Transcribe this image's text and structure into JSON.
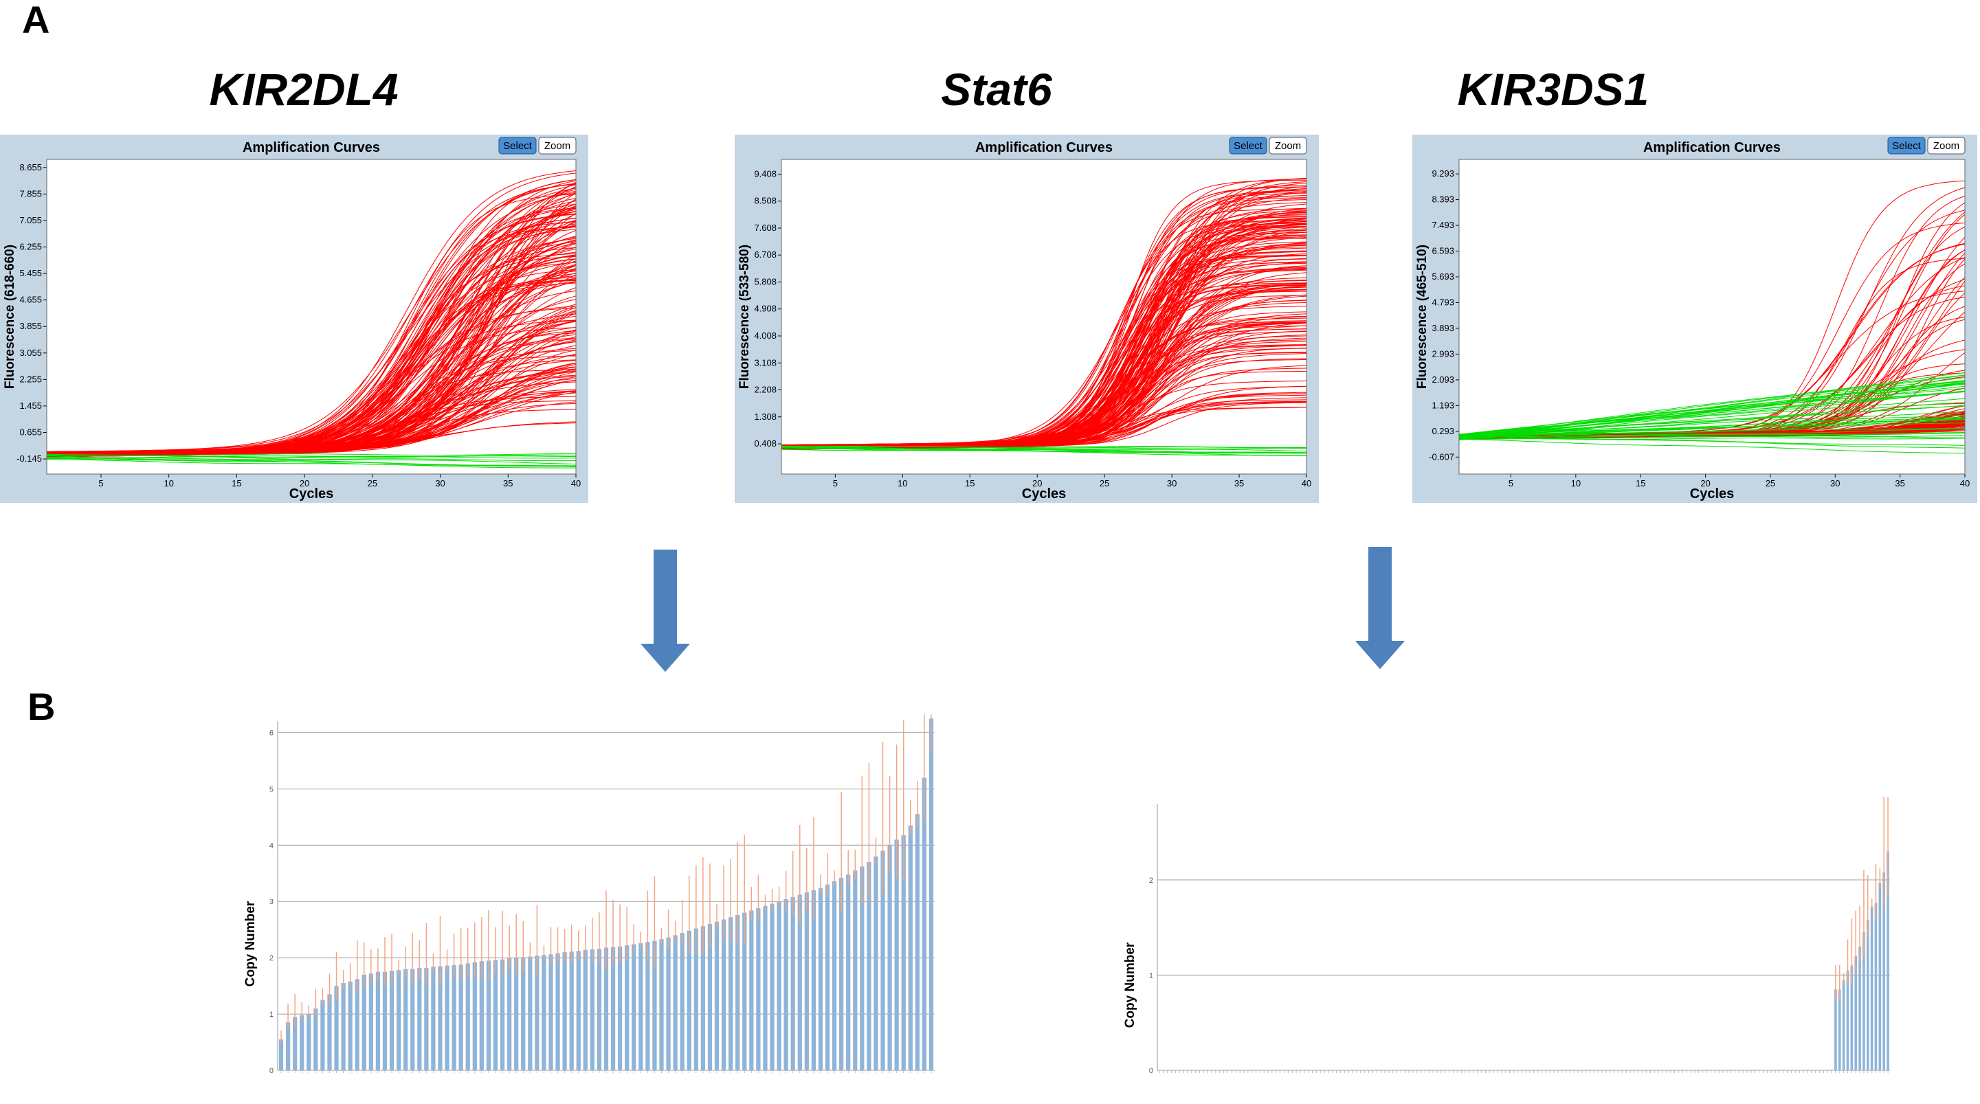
{
  "labels": {
    "panel_a": "A",
    "panel_b": "B"
  },
  "colors": {
    "red": "#ff0000",
    "green": "#00dd00",
    "frame": "#c4d5e4",
    "bar": "#8fb4d9",
    "err": "#f4a582",
    "arrow": "#4f81bd"
  },
  "chart_data": [
    {
      "type": "line",
      "gene": "KIR2DL4",
      "title": "Amplification Curves",
      "xlabel": "Cycles",
      "ylabel": "Fluorescence (618-660)",
      "buttons": {
        "select": "Select",
        "zoom": "Zoom"
      },
      "xlim": [
        1,
        40
      ],
      "ylim": [
        -0.6,
        8.9
      ],
      "x_ticks": [
        5,
        10,
        15,
        20,
        25,
        30,
        35,
        40
      ],
      "y_ticks": [
        "-0.145",
        "0.655",
        "1.455",
        "2.255",
        "3.055",
        "3.855",
        "4.655",
        "5.455",
        "6.255",
        "7.055",
        "7.855",
        "8.655"
      ],
      "series": [
        {
          "color": "red",
          "count": 180,
          "baseline": 0.0,
          "plateau_range": [
            0.7,
            8.5
          ],
          "midpoint_range": [
            27,
            34
          ],
          "slope_range": [
            2.2,
            3.2
          ]
        },
        {
          "color": "green",
          "count": 10,
          "baseline": -0.1,
          "plateau_range": [
            0,
            0
          ],
          "drift_range": [
            -0.3,
            0.05
          ]
        }
      ]
    },
    {
      "type": "line",
      "gene": "Stat6",
      "title": "Amplification Curves",
      "xlabel": "Cycles",
      "ylabel": "Fluorescence (533-580)",
      "buttons": {
        "select": "Select",
        "zoom": "Zoom"
      },
      "xlim": [
        1,
        40
      ],
      "ylim": [
        -0.6,
        9.9
      ],
      "x_ticks": [
        5,
        10,
        15,
        20,
        25,
        30,
        35,
        40
      ],
      "y_ticks": [
        "0.408",
        "1.308",
        "2.208",
        "3.108",
        "4.008",
        "4.908",
        "5.808",
        "6.708",
        "7.608",
        "8.508",
        "9.408"
      ],
      "series": [
        {
          "color": "red",
          "count": 180,
          "baseline": 0.3,
          "plateau_range": [
            0.8,
            8.8
          ],
          "midpoint_range": [
            26,
            30
          ],
          "slope_range": [
            1.6,
            2.4
          ]
        },
        {
          "color": "green",
          "count": 10,
          "baseline": 0.3,
          "plateau_range": [
            0,
            0
          ],
          "drift_range": [
            -0.3,
            0.05
          ]
        }
      ]
    },
    {
      "type": "line",
      "gene": "KIR3DS1",
      "title": "Amplification Curves",
      "xlabel": "Cycles",
      "ylabel": "Fluorescence (465-510)",
      "buttons": {
        "select": "Select",
        "zoom": "Zoom"
      },
      "xlim": [
        1,
        40
      ],
      "ylim": [
        -1.2,
        9.8
      ],
      "x_ticks": [
        5,
        10,
        15,
        20,
        25,
        30,
        35,
        40
      ],
      "y_ticks": [
        "-0.607",
        "0.293",
        "1.193",
        "2.093",
        "2.993",
        "3.893",
        "4.793",
        "5.693",
        "6.593",
        "7.493",
        "8.393",
        "9.293"
      ],
      "series": [
        {
          "color": "red",
          "count": 40,
          "baseline": 0.1,
          "plateau_range": [
            0.3,
            9.0
          ],
          "midpoint_range": [
            30,
            38
          ],
          "slope_range": [
            1.8,
            2.8
          ]
        },
        {
          "color": "red",
          "count": 60,
          "baseline": 0.1,
          "plateau_range": [
            0.1,
            1.2
          ],
          "midpoint_range": [
            36,
            42
          ],
          "slope_range": [
            2.0,
            3.0
          ]
        },
        {
          "color": "green",
          "count": 40,
          "baseline": 0.1,
          "plateau_range": [
            0,
            0
          ],
          "drift_range": [
            -0.6,
            2.4
          ]
        }
      ]
    },
    {
      "type": "bar",
      "ylabel": "Copy Number",
      "ylim": [
        0,
        6.2
      ],
      "y_ticks": [
        0,
        1,
        2,
        3,
        4,
        5,
        6
      ],
      "values": [
        0.55,
        0.85,
        0.95,
        0.98,
        1.0,
        1.1,
        1.25,
        1.35,
        1.5,
        1.55,
        1.58,
        1.62,
        1.7,
        1.72,
        1.75,
        1.75,
        1.77,
        1.78,
        1.8,
        1.8,
        1.82,
        1.82,
        1.84,
        1.85,
        1.86,
        1.87,
        1.88,
        1.9,
        1.92,
        1.94,
        1.95,
        1.96,
        1.97,
        1.99,
        2.0,
        2.01,
        2.02,
        2.04,
        2.05,
        2.06,
        2.08,
        2.1,
        2.11,
        2.12,
        2.14,
        2.15,
        2.16,
        2.18,
        2.19,
        2.2,
        2.22,
        2.24,
        2.26,
        2.28,
        2.3,
        2.33,
        2.36,
        2.4,
        2.44,
        2.48,
        2.52,
        2.56,
        2.6,
        2.64,
        2.68,
        2.72,
        2.76,
        2.8,
        2.84,
        2.88,
        2.92,
        2.96,
        3.0,
        3.04,
        3.08,
        3.12,
        3.16,
        3.2,
        3.24,
        3.3,
        3.36,
        3.42,
        3.48,
        3.55,
        3.62,
        3.7,
        3.8,
        3.9,
        4.0,
        4.1,
        4.18,
        4.35,
        4.55,
        5.2,
        6.25
      ]
    },
    {
      "type": "bar",
      "ylabel": "Copy Number",
      "ylim": [
        0,
        2.8
      ],
      "y_ticks": [
        0,
        1,
        2
      ],
      "values": [
        0,
        0,
        0,
        0,
        0,
        0,
        0,
        0,
        0,
        0,
        0,
        0,
        0,
        0,
        0,
        0,
        0,
        0,
        0,
        0,
        0,
        0,
        0,
        0,
        0,
        0,
        0,
        0,
        0,
        0,
        0,
        0,
        0,
        0,
        0,
        0,
        0,
        0,
        0,
        0,
        0,
        0,
        0,
        0,
        0,
        0,
        0,
        0,
        0,
        0,
        0,
        0,
        0,
        0,
        0,
        0,
        0,
        0,
        0,
        0,
        0,
        0,
        0,
        0,
        0,
        0,
        0,
        0,
        0,
        0,
        0,
        0,
        0,
        0,
        0,
        0,
        0,
        0,
        0,
        0,
        0,
        0,
        0,
        0,
        0,
        0,
        0,
        0,
        0,
        0,
        0,
        0,
        0,
        0,
        0,
        0,
        0,
        0,
        0,
        0,
        0,
        0,
        0,
        0,
        0,
        0,
        0,
        0,
        0,
        0,
        0,
        0,
        0,
        0,
        0,
        0,
        0,
        0,
        0,
        0,
        0,
        0,
        0,
        0,
        0,
        0,
        0,
        0,
        0,
        0,
        0,
        0,
        0,
        0,
        0,
        0,
        0,
        0,
        0,
        0,
        0,
        0,
        0,
        0,
        0,
        0,
        0,
        0,
        0,
        0,
        0,
        0,
        0,
        0,
        0,
        0,
        0,
        0,
        0,
        0,
        0,
        0,
        0,
        0,
        0,
        0,
        0,
        0,
        0.85,
        0.85,
        0.95,
        1.05,
        1.1,
        1.2,
        1.3,
        1.45,
        1.58,
        1.72,
        1.76,
        1.97,
        2.08,
        2.3
      ]
    }
  ]
}
